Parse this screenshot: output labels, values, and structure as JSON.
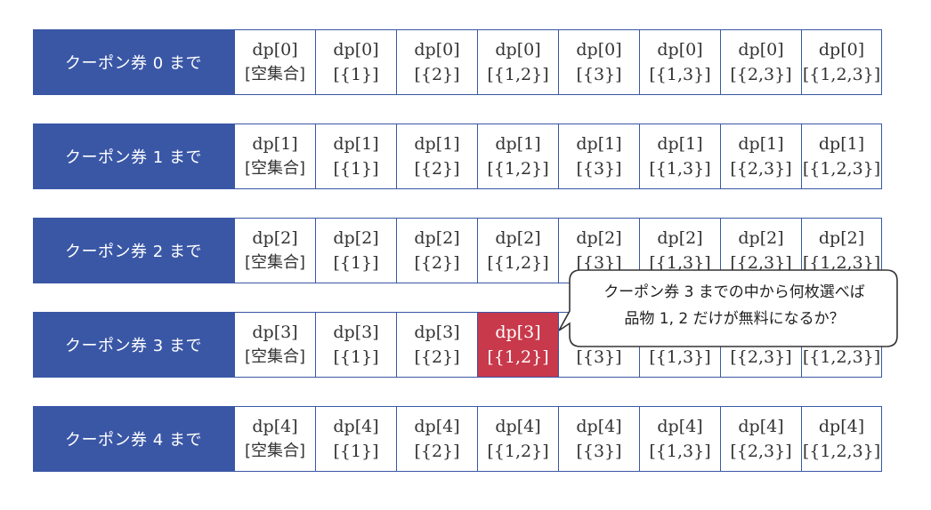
{
  "rows": [
    {
      "label": "クーポン券 0 まで",
      "index": "0"
    },
    {
      "label": "クーポン券 1 まで",
      "index": "1"
    },
    {
      "label": "クーポン券 2 まで",
      "index": "2"
    },
    {
      "label": "クーポン券 3 まで",
      "index": "3"
    },
    {
      "label": "クーポン券 4 まで",
      "index": "4"
    }
  ],
  "sets": [
    "[空集合]",
    "[{1}]",
    "[{2}]",
    "[{1,2}]",
    "[{3}]",
    "[{1,3}]",
    "[{2,3}]",
    "[{1,2,3}]"
  ],
  "highlight": {
    "row": 3,
    "col": 3,
    "color": "#c8394b"
  },
  "colors": {
    "header": "#3a57a6",
    "border": "#3a57a6",
    "highlight": "#c8394b"
  },
  "callout": {
    "line1": "クーポン券 3 までの中から何枚選べば",
    "line2": "品物 1, 2 だけが無料になるか？"
  }
}
